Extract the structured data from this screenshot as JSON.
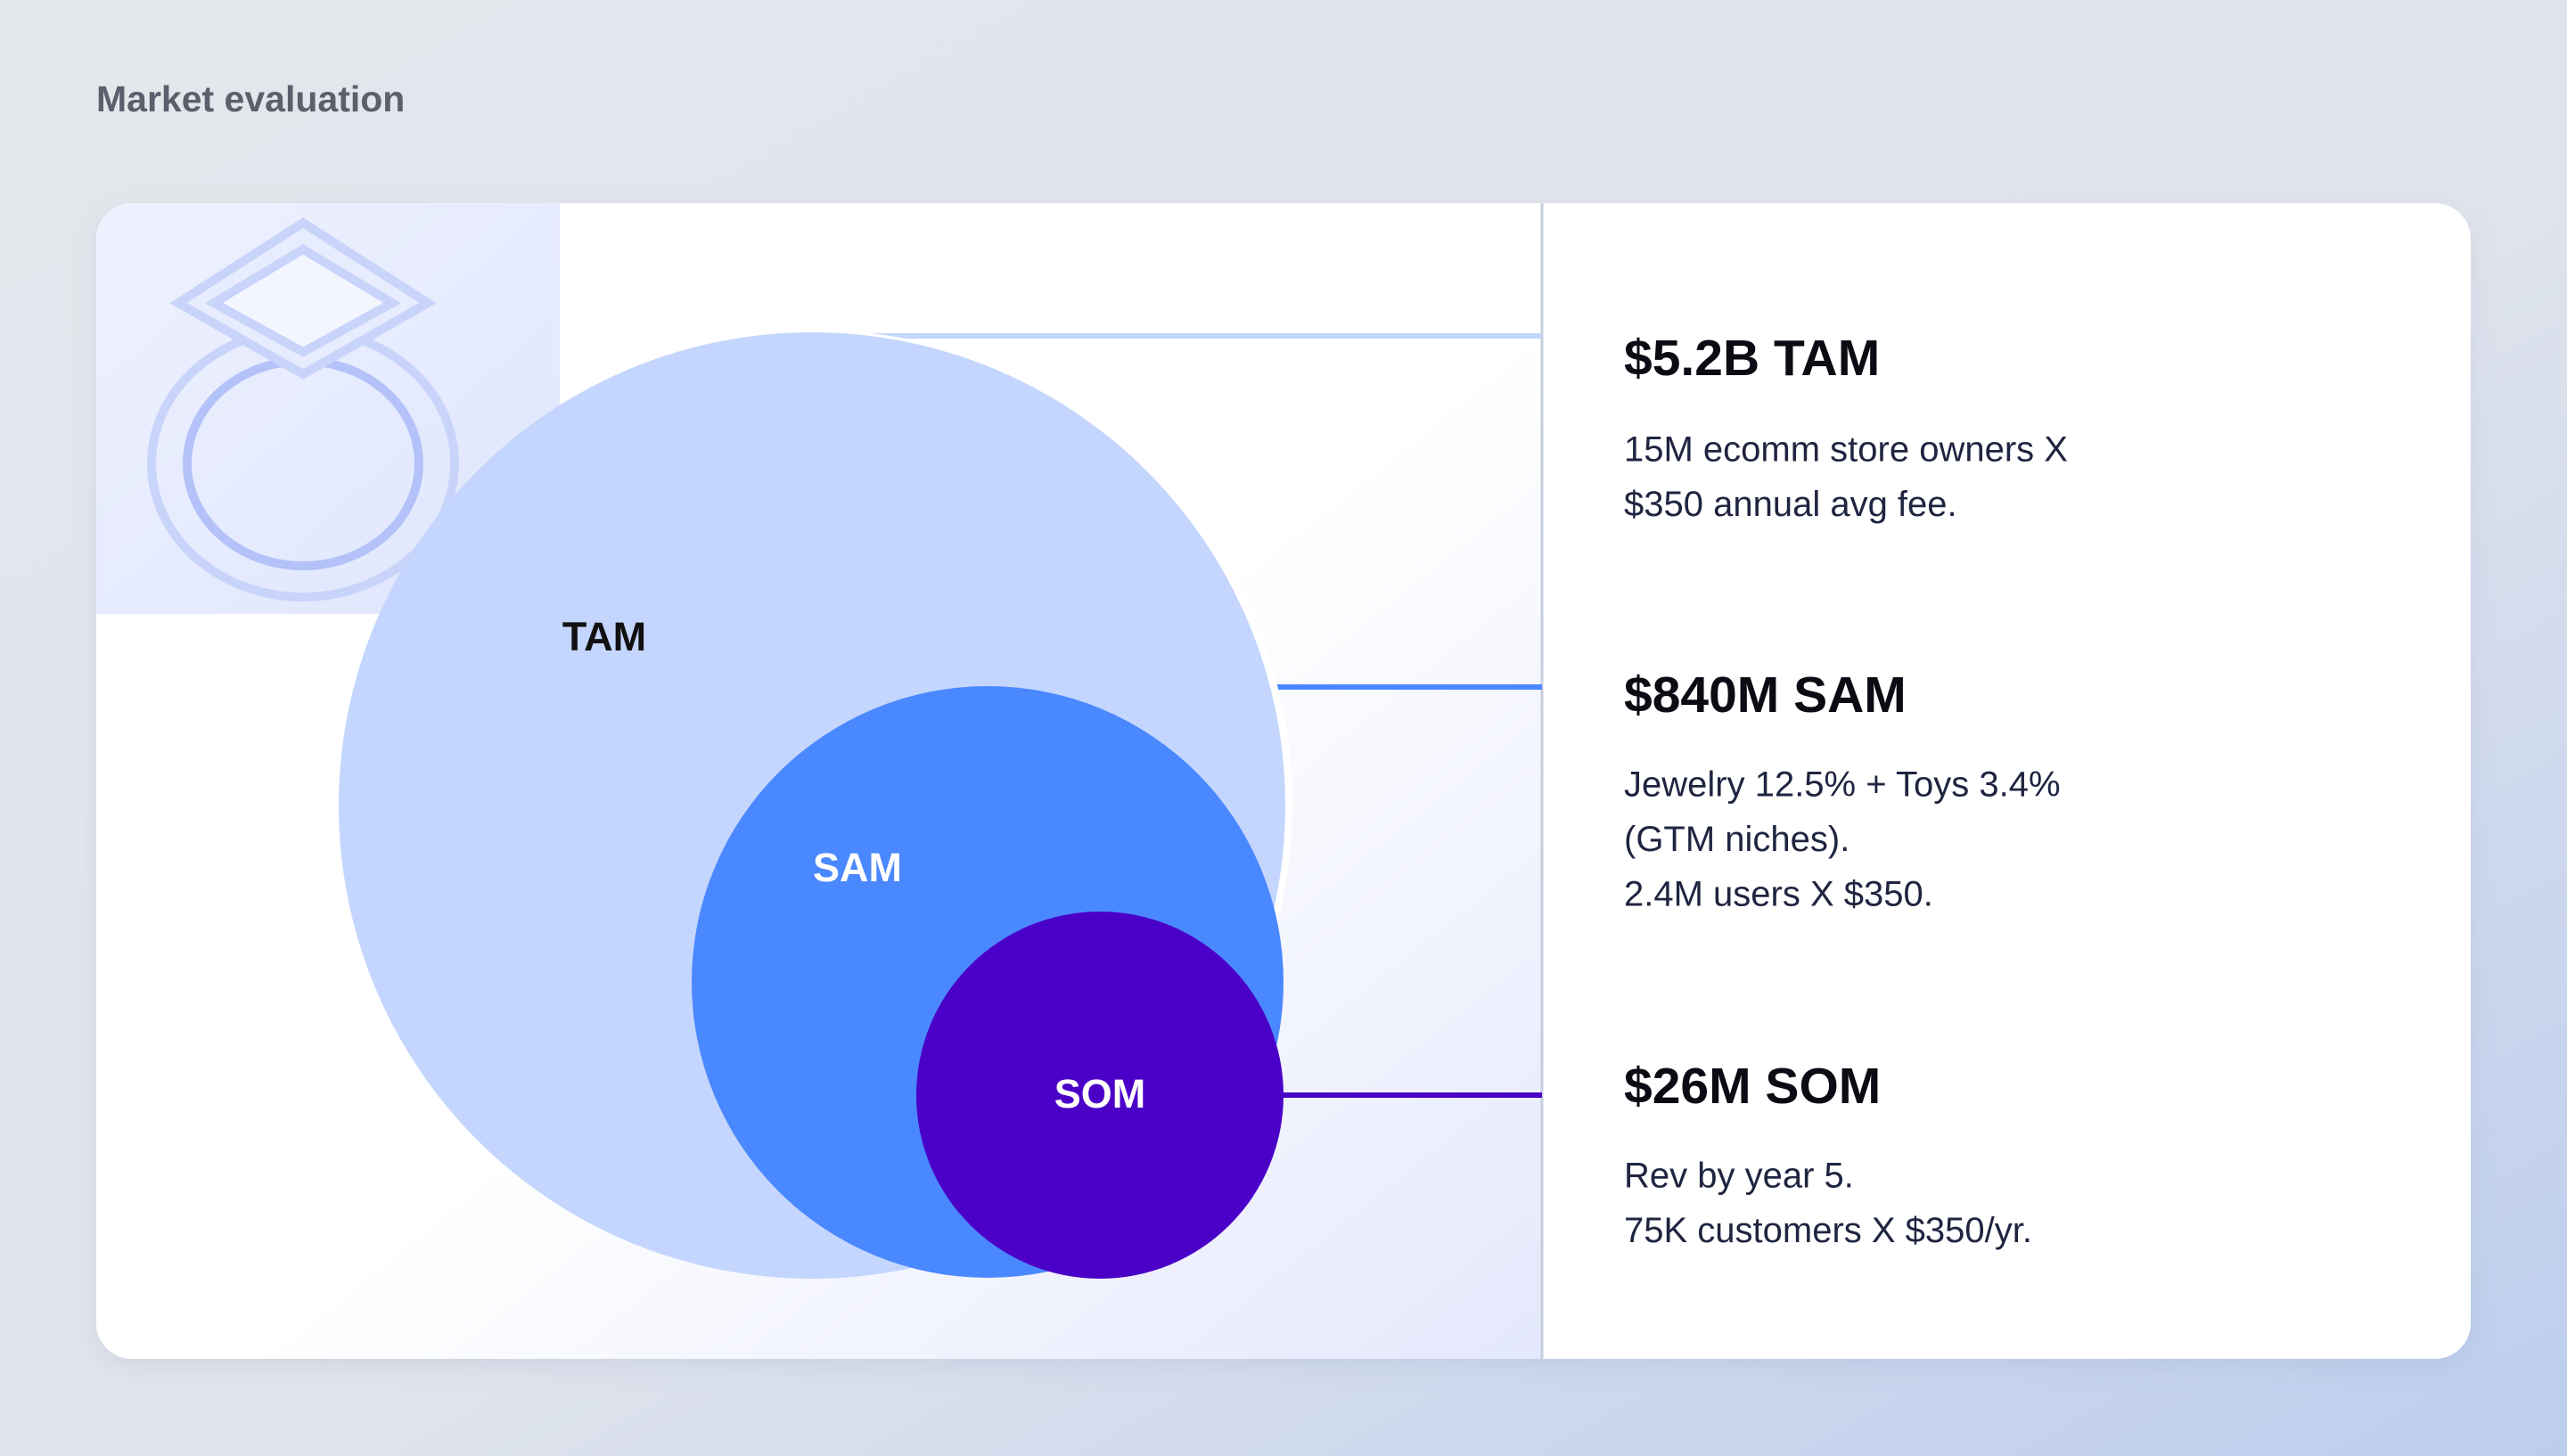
{
  "title": "Market evaluation",
  "diagram": {
    "circles": [
      {
        "label": "TAM"
      },
      {
        "label": "SAM"
      },
      {
        "label": "SOM"
      }
    ]
  },
  "items": [
    {
      "heading": "$5.2B TAM",
      "lines": [
        "15M ecomm store owners X",
        "$350 annual avg fee."
      ]
    },
    {
      "heading": "$840M SAM",
      "lines": [
        "Jewelry 12.5% + Toys 3.4%",
        "(GTM niches).",
        "2.4M users X $350."
      ]
    },
    {
      "heading": "$26M SOM",
      "lines": [
        "Rev by year 5.",
        "75K customers X $350/yr."
      ]
    }
  ]
}
